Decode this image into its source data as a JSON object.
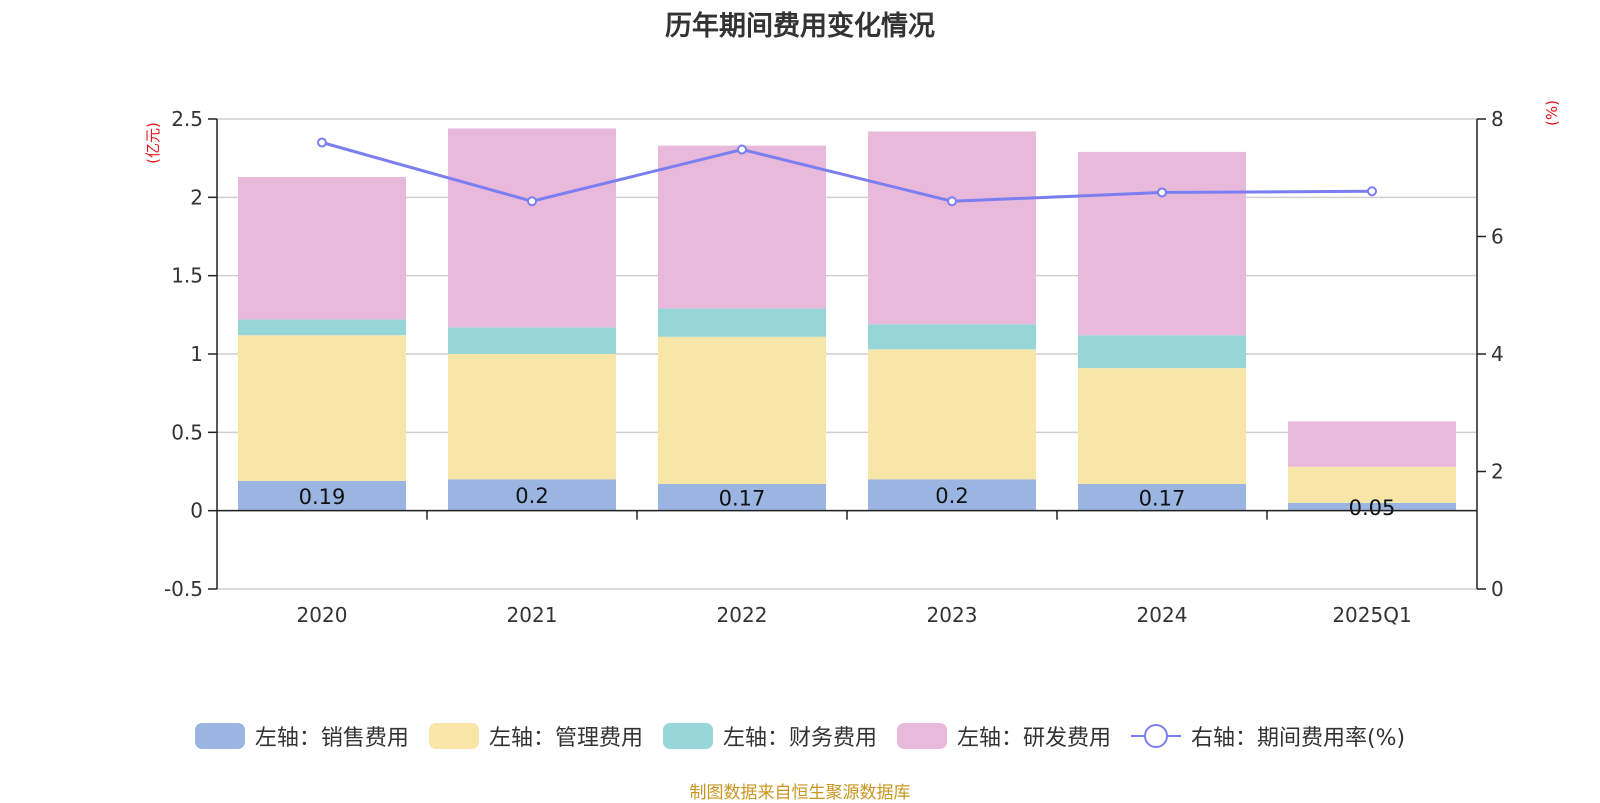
{
  "chart_data": {
    "type": "bar",
    "title": "历年期间费用变化情况",
    "categories": [
      "2020",
      "2021",
      "2022",
      "2023",
      "2024",
      "2025Q1"
    ],
    "stacked": true,
    "left_axis": {
      "unit": "(亿元)",
      "ylim": [
        -0.5,
        2.5
      ],
      "ticks": [
        "2.5",
        "2",
        "1.5",
        "1",
        "0.5",
        "0",
        "-0.5"
      ],
      "tick_values": [
        2.5,
        2,
        1.5,
        1,
        0.5,
        0,
        -0.5
      ]
    },
    "right_axis": {
      "unit": "(%)",
      "ylim": [
        0,
        8
      ],
      "ticks": [
        "8",
        "6",
        "4",
        "2",
        "0"
      ],
      "tick_values": [
        8,
        6,
        4,
        2,
        0
      ]
    },
    "series": [
      {
        "name": "左轴：销售费用",
        "axis": "left",
        "type": "bar",
        "color": "#9ab5e2",
        "values": [
          0.19,
          0.2,
          0.17,
          0.2,
          0.17,
          0.05
        ],
        "labels": [
          "0.19",
          "0.2",
          "0.17",
          "0.2",
          "0.17",
          "0.05"
        ]
      },
      {
        "name": "左轴：管理费用",
        "axis": "left",
        "type": "bar",
        "color": "#f7e6a8",
        "values": [
          0.93,
          0.8,
          0.94,
          0.83,
          0.74,
          0.23
        ]
      },
      {
        "name": "左轴：财务费用",
        "axis": "left",
        "type": "bar",
        "color": "#97d6d6",
        "values": [
          0.1,
          0.17,
          0.18,
          0.16,
          0.21,
          0.0
        ]
      },
      {
        "name": "左轴：研发费用",
        "axis": "left",
        "type": "bar",
        "color": "#e8b9da",
        "values": [
          0.91,
          1.27,
          1.04,
          1.23,
          1.17,
          0.29
        ]
      },
      {
        "name": "右轴：期间费用率(%)",
        "axis": "right",
        "type": "line",
        "color": "#7a7ef0",
        "values": [
          7.6,
          6.6,
          7.48,
          6.6,
          6.75,
          6.77
        ]
      }
    ]
  },
  "source_note": "制图数据来自恒生聚源数据库"
}
